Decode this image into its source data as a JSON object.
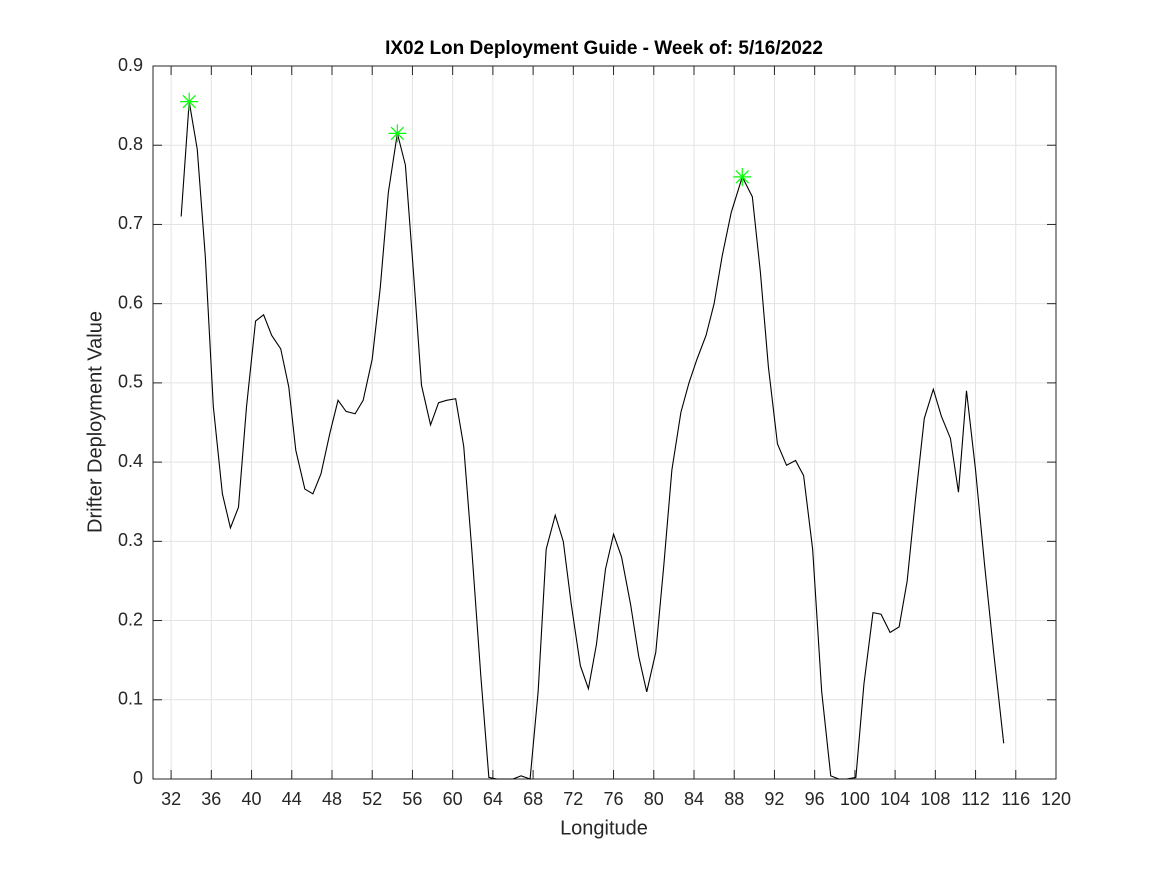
{
  "chart_data": {
    "type": "line",
    "title": "IX02 Lon Deployment Guide - Week of: 5/16/2022",
    "xlabel": "Longitude",
    "ylabel": "Drifter Deployment Value",
    "xlim": [
      30.2,
      120
    ],
    "ylim": [
      0,
      0.9
    ],
    "xticks": [
      32,
      36,
      40,
      44,
      48,
      52,
      56,
      60,
      64,
      68,
      72,
      76,
      80,
      84,
      88,
      92,
      96,
      100,
      104,
      108,
      112,
      116,
      120
    ],
    "yticks": [
      0,
      0.1,
      0.2,
      0.3,
      0.4,
      0.5,
      0.6,
      0.7,
      0.8,
      0.9
    ],
    "grid": true,
    "series": [
      {
        "color": "#000000",
        "marker": "none",
        "x": [
          33.0,
          33.8,
          34.6,
          35.4,
          36.2,
          37.1,
          37.9,
          38.7,
          39.5,
          40.4,
          41.2,
          42.0,
          42.9,
          43.7,
          44.4,
          45.3,
          46.1,
          46.9,
          47.8,
          48.6,
          49.4,
          50.3,
          51.1,
          52.0,
          52.8,
          53.6,
          54.5,
          55.3,
          56.1,
          56.9,
          57.8,
          58.6,
          59.4,
          60.3,
          61.1,
          61.9,
          62.8,
          63.6,
          64.4,
          65.3,
          66.0,
          66.8,
          67.7,
          68.5,
          69.3,
          70.2,
          71.0,
          71.8,
          72.7,
          73.5,
          74.3,
          75.2,
          76.0,
          76.8,
          77.7,
          78.5,
          79.3,
          80.2,
          81.0,
          81.8,
          82.7,
          83.5,
          84.3,
          85.2,
          86.0,
          86.8,
          87.7,
          88.8,
          89.8,
          90.6,
          91.4,
          92.3,
          93.2,
          94.1,
          94.9,
          95.8,
          96.7,
          97.6,
          98.4,
          99.2,
          100.1,
          100.9,
          101.8,
          102.6,
          103.5,
          104.4,
          105.2,
          106.0,
          106.9,
          107.8,
          108.6,
          109.5,
          110.3,
          111.1,
          112.0,
          112.9,
          113.8,
          114.8
        ],
        "values": [
          0.71,
          0.855,
          0.795,
          0.66,
          0.47,
          0.36,
          0.317,
          0.343,
          0.47,
          0.578,
          0.586,
          0.56,
          0.543,
          0.495,
          0.415,
          0.366,
          0.36,
          0.385,
          0.437,
          0.478,
          0.464,
          0.461,
          0.478,
          0.53,
          0.62,
          0.74,
          0.815,
          0.775,
          0.64,
          0.497,
          0.447,
          0.475,
          0.478,
          0.48,
          0.42,
          0.29,
          0.13,
          0.002,
          0.0,
          0.0,
          0.0,
          0.004,
          0.0,
          0.11,
          0.29,
          0.333,
          0.3,
          0.22,
          0.143,
          0.114,
          0.17,
          0.265,
          0.309,
          0.28,
          0.22,
          0.155,
          0.11,
          0.16,
          0.27,
          0.39,
          0.463,
          0.5,
          0.53,
          0.56,
          0.6,
          0.66,
          0.715,
          0.76,
          0.735,
          0.64,
          0.52,
          0.423,
          0.396,
          0.402,
          0.383,
          0.29,
          0.11,
          0.004,
          0.0,
          0.0,
          0.002,
          0.12,
          0.21,
          0.208,
          0.185,
          0.192,
          0.25,
          0.35,
          0.455,
          0.492,
          0.458,
          0.43,
          0.362,
          0.49,
          0.39,
          0.27,
          0.16,
          0.045
        ]
      },
      {
        "color": "#00ff00",
        "marker": "star",
        "x": [
          33.8,
          54.5,
          88.8
        ],
        "values": [
          0.855,
          0.815,
          0.76
        ]
      }
    ]
  }
}
